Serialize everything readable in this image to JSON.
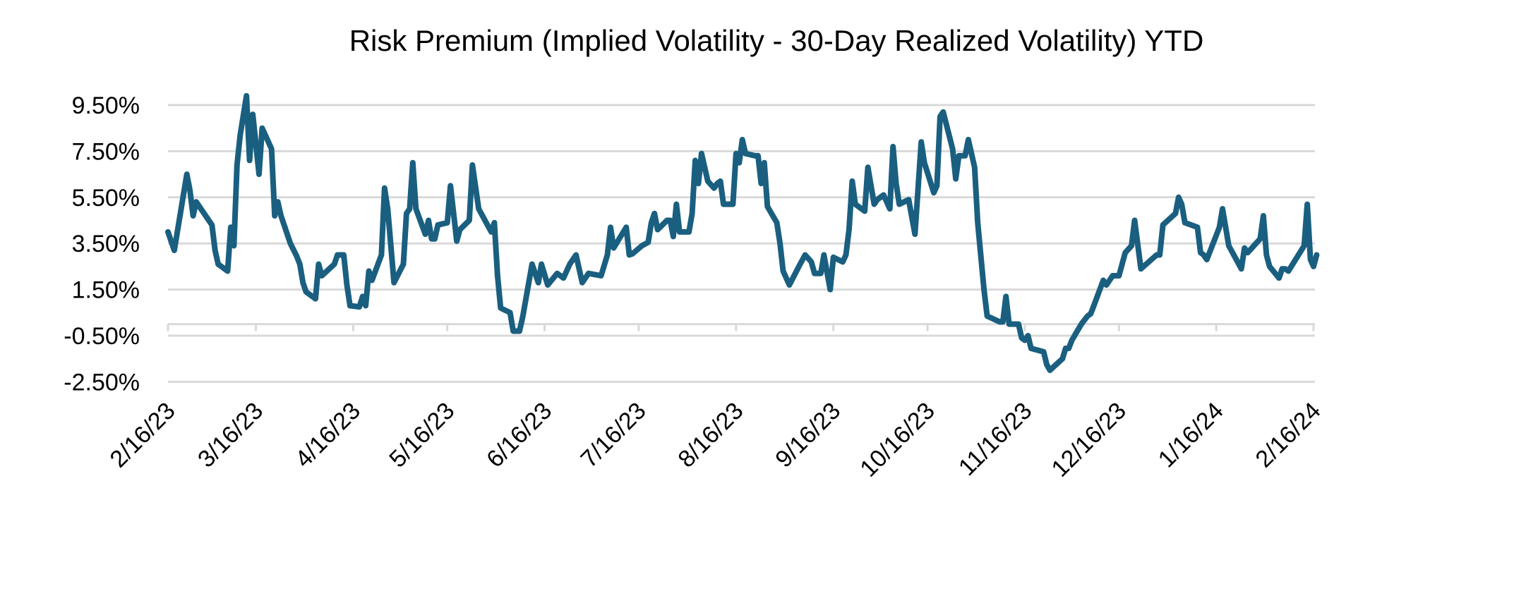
{
  "chart_data": {
    "type": "line",
    "title": "Risk Premium (Implied Volatility - 30-Day Realized Volatility) YTD",
    "xlabel": "",
    "ylabel": "",
    "ylim": [
      -2.5,
      9.5
    ],
    "y_ticks": [
      "9.50%",
      "7.50%",
      "5.50%",
      "3.50%",
      "1.50%",
      "-0.50%",
      "-2.50%"
    ],
    "y_tick_values": [
      9.5,
      7.5,
      5.5,
      3.5,
      1.5,
      -0.5,
      -2.5
    ],
    "x_ticks": [
      "2/16/23",
      "3/16/23",
      "4/16/23",
      "5/16/23",
      "6/16/23",
      "7/16/23",
      "8/16/23",
      "9/16/23",
      "10/16/23",
      "11/16/23",
      "12/16/23",
      "1/16/24",
      "2/16/24"
    ],
    "x_tick_dates": [
      "2023-02-16",
      "2023-03-16",
      "2023-04-16",
      "2023-05-16",
      "2023-06-16",
      "2023-07-16",
      "2023-08-16",
      "2023-09-16",
      "2023-10-16",
      "2023-11-16",
      "2023-12-16",
      "2024-01-16",
      "2024-02-16"
    ],
    "x_axis_crosses_at": 0,
    "grid": "horizontal",
    "legend": "none",
    "line_color": "#1a5f80",
    "grid_color": "#d9d9d9",
    "series": [
      {
        "x": [
          "2023-02-16",
          "2023-02-18",
          "2023-02-22",
          "2023-02-23",
          "2023-02-24",
          "2023-02-25",
          "2023-03-01",
          "2023-03-02",
          "2023-03-03",
          "2023-03-04",
          "2023-03-07",
          "2023-03-08",
          "2023-03-09",
          "2023-03-10",
          "2023-03-11",
          "2023-03-13",
          "2023-03-14",
          "2023-03-15",
          "2023-03-17",
          "2023-03-18",
          "2023-03-21",
          "2023-03-22",
          "2023-03-23",
          "2023-03-24",
          "2023-03-27",
          "2023-03-29",
          "2023-03-30",
          "2023-03-31",
          "2023-04-01",
          "2023-04-04",
          "2023-04-05",
          "2023-04-06",
          "2023-04-10",
          "2023-04-11",
          "2023-04-13",
          "2023-04-14",
          "2023-04-15",
          "2023-04-18",
          "2023-04-19",
          "2023-04-20",
          "2023-04-21",
          "2023-04-22",
          "2023-04-25",
          "2023-04-26",
          "2023-04-27",
          "2023-04-29",
          "2023-05-02",
          "2023-05-03",
          "2023-05-04",
          "2023-05-05",
          "2023-05-06",
          "2023-05-09",
          "2023-05-10",
          "2023-05-11",
          "2023-05-12",
          "2023-05-13",
          "2023-05-16",
          "2023-05-17",
          "2023-05-19",
          "2023-05-20",
          "2023-05-23",
          "2023-05-24",
          "2023-05-26",
          "2023-05-30",
          "2023-05-31",
          "2023-06-01",
          "2023-06-02",
          "2023-06-05",
          "2023-06-06",
          "2023-06-08",
          "2023-06-09",
          "2023-06-12",
          "2023-06-14",
          "2023-06-15",
          "2023-06-17",
          "2023-06-20",
          "2023-06-22",
          "2023-06-24",
          "2023-06-26",
          "2023-06-28",
          "2023-06-30",
          "2023-07-04",
          "2023-07-06",
          "2023-07-07",
          "2023-07-08",
          "2023-07-12",
          "2023-07-13",
          "2023-07-14",
          "2023-07-17",
          "2023-07-19",
          "2023-07-20",
          "2023-07-21",
          "2023-07-22",
          "2023-07-25",
          "2023-07-26",
          "2023-07-27",
          "2023-07-28",
          "2023-07-29",
          "2023-08-01",
          "2023-08-02",
          "2023-08-03",
          "2023-08-04",
          "2023-08-05",
          "2023-08-07",
          "2023-08-09",
          "2023-08-10",
          "2023-08-11",
          "2023-08-12",
          "2023-08-15",
          "2023-08-16",
          "2023-08-17",
          "2023-08-18",
          "2023-08-19",
          "2023-08-22",
          "2023-08-23",
          "2023-08-24",
          "2023-08-25",
          "2023-08-26",
          "2023-08-29",
          "2023-08-30",
          "2023-08-31",
          "2023-09-02",
          "2023-09-05",
          "2023-09-07",
          "2023-09-09",
          "2023-09-10",
          "2023-09-12",
          "2023-09-13",
          "2023-09-15",
          "2023-09-16",
          "2023-09-19",
          "2023-09-20",
          "2023-09-21",
          "2023-09-22",
          "2023-09-23",
          "2023-09-26",
          "2023-09-27",
          "2023-09-29",
          "2023-09-30",
          "2023-10-02",
          "2023-10-04",
          "2023-10-05",
          "2023-10-06",
          "2023-10-07",
          "2023-10-10",
          "2023-10-12",
          "2023-10-14",
          "2023-10-15",
          "2023-10-18",
          "2023-10-19",
          "2023-10-20",
          "2023-10-21",
          "2023-10-24",
          "2023-10-25",
          "2023-10-26",
          "2023-10-28",
          "2023-10-29",
          "2023-10-31",
          "2023-11-01",
          "2023-11-03",
          "2023-11-04",
          "2023-11-08",
          "2023-11-09",
          "2023-11-10",
          "2023-11-11",
          "2023-11-14",
          "2023-11-15",
          "2023-11-16",
          "2023-11-17",
          "2023-11-18",
          "2023-11-22",
          "2023-11-23",
          "2023-11-24",
          "2023-11-28",
          "2023-11-29",
          "2023-11-30",
          "2023-12-01",
          "2023-12-04",
          "2023-12-06",
          "2023-12-07",
          "2023-12-08",
          "2023-12-11",
          "2023-12-12",
          "2023-12-14",
          "2023-12-16",
          "2023-12-18",
          "2023-12-20",
          "2023-12-21",
          "2023-12-23",
          "2023-12-28",
          "2023-12-29",
          "2023-12-30",
          "2024-01-03",
          "2024-01-04",
          "2024-01-05",
          "2024-01-06",
          "2024-01-10",
          "2024-01-11",
          "2024-01-12",
          "2024-01-13",
          "2024-01-17",
          "2024-01-18",
          "2024-01-20",
          "2024-01-22",
          "2024-01-24",
          "2024-01-25",
          "2024-01-26",
          "2024-01-30",
          "2024-01-31",
          "2024-02-01",
          "2024-02-02",
          "2024-02-05",
          "2024-02-06",
          "2024-02-07",
          "2024-02-08",
          "2024-02-13",
          "2024-02-14",
          "2024-02-15",
          "2024-02-16",
          "2024-02-17"
        ],
        "values": [
          4.0,
          3.2,
          6.5,
          5.8,
          4.7,
          5.3,
          4.5,
          4.3,
          3.2,
          2.6,
          2.3,
          4.2,
          3.4,
          6.9,
          8.2,
          9.9,
          7.1,
          9.1,
          6.5,
          8.5,
          7.6,
          4.7,
          5.3,
          4.7,
          3.5,
          2.95,
          2.6,
          1.8,
          1.4,
          1.1,
          2.6,
          2.1,
          2.6,
          3.0,
          3.0,
          1.7,
          0.8,
          0.75,
          1.2,
          0.8,
          2.3,
          1.9,
          3.0,
          5.9,
          5.0,
          1.8,
          2.6,
          4.8,
          5.0,
          7.0,
          5.0,
          3.9,
          4.5,
          3.7,
          3.7,
          4.3,
          4.4,
          6.0,
          3.6,
          4.1,
          4.5,
          6.9,
          5.0,
          4.0,
          4.4,
          2.1,
          0.7,
          0.5,
          -0.3,
          -0.3,
          0.3,
          2.6,
          1.8,
          2.6,
          1.7,
          2.2,
          2.0,
          2.6,
          3.0,
          1.8,
          2.2,
          2.1,
          3.0,
          4.2,
          3.3,
          4.2,
          3.0,
          3.05,
          3.4,
          3.55,
          4.4,
          4.8,
          4.1,
          4.5,
          4.5,
          3.8,
          5.2,
          4.0,
          4.0,
          4.8,
          7.1,
          6.1,
          7.4,
          6.2,
          5.9,
          6.1,
          6.2,
          5.2,
          5.2,
          7.4,
          7.0,
          8.0,
          7.4,
          7.3,
          7.3,
          6.1,
          7.0,
          5.1,
          4.4,
          3.5,
          2.3,
          1.7,
          2.5,
          3.0,
          2.7,
          2.2,
          2.2,
          3.0,
          1.5,
          2.9,
          2.7,
          3.0,
          4.1,
          6.2,
          5.2,
          4.9,
          6.8,
          5.2,
          5.4,
          5.6,
          5.0,
          7.7,
          6.1,
          5.2,
          5.4,
          3.9,
          7.9,
          7.0,
          5.7,
          6.0,
          9.0,
          9.2,
          7.6,
          6.3,
          7.3,
          7.3,
          8.0,
          6.8,
          4.4,
          1.5,
          0.35,
          0.1,
          0.1,
          1.2,
          0.0,
          0.0,
          -0.6,
          -0.7,
          -0.5,
          -1.05,
          -1.2,
          -1.75,
          -2.0,
          -1.5,
          -1.05,
          -1.05,
          -0.7,
          0.0,
          0.35,
          0.45,
          0.8,
          1.9,
          1.7,
          2.1,
          2.1,
          3.1,
          3.4,
          4.5,
          2.4,
          3.0,
          3.0,
          4.3,
          4.8,
          5.5,
          5.2,
          4.4,
          4.2,
          3.1,
          3.0,
          2.8,
          4.2,
          5.0,
          3.4,
          2.9,
          2.4,
          3.3,
          3.1,
          3.7,
          4.7,
          3.0,
          2.5,
          2.0,
          2.4,
          2.4,
          2.3,
          3.4,
          5.2,
          2.8,
          2.5,
          3.0
        ]
      }
    ]
  }
}
